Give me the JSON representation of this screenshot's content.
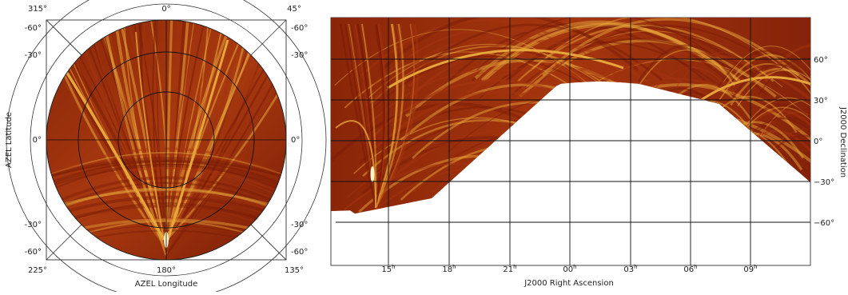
{
  "colors": {
    "map_dark": "#7a1c07",
    "map_mid": "#a4340f",
    "map_bright": "#e7a63a",
    "map_white": "#fff1c9",
    "grid": "#111111",
    "outline": "#333333"
  },
  "left_panel": {
    "projection": "azimuth-elevation (polar)",
    "top_labels": [
      "315°",
      "0°",
      "45°"
    ],
    "bottom_labels": [
      "225°",
      "180°",
      "135°"
    ],
    "left_labels": [
      "-60°",
      "-30°",
      "0°",
      "-30°",
      "-60°"
    ],
    "right_labels": [
      "-60°",
      "-30°",
      "0°",
      "-30°",
      "-60°"
    ],
    "x_title": "AZEL Longitude",
    "y_title": "AZEL Latitude"
  },
  "right_panel": {
    "projection": "celestial (equatorial)",
    "x_ticks": [
      {
        "h": "15",
        "u": "h"
      },
      {
        "h": "18",
        "u": "h"
      },
      {
        "h": "21",
        "u": "h"
      },
      {
        "h": "00",
        "u": "h"
      },
      {
        "h": "03",
        "u": "h"
      },
      {
        "h": "06",
        "u": "h"
      },
      {
        "h": "09",
        "u": "h"
      }
    ],
    "y_ticks": [
      "60°",
      "30°",
      "0°",
      "−30°",
      "−60°"
    ],
    "x_title": "J2000 Right Ascension",
    "y_title": "J2000 Declination"
  }
}
